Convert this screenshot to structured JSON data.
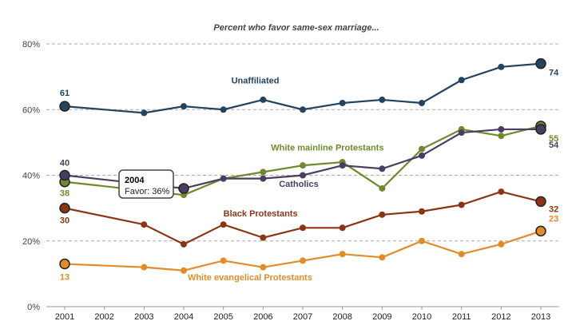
{
  "chart_data": {
    "type": "line",
    "title": "Percent who favor same-sex marriage...",
    "xlabel": "",
    "ylabel": "",
    "x": [
      "2001",
      "2002",
      "2003",
      "2004",
      "2005",
      "2006",
      "2007",
      "2008",
      "2009",
      "2010",
      "2011",
      "2012",
      "2013"
    ],
    "ylim": [
      0,
      80
    ],
    "yticks": [
      0,
      20,
      40,
      60,
      80
    ],
    "ytick_labels": [
      "0%",
      "20%",
      "40%",
      "60%",
      "80%"
    ],
    "grid": true,
    "series": [
      {
        "name": "Unaffiliated",
        "color": "#24435f",
        "values": [
          61,
          null,
          59,
          61,
          60,
          63,
          60,
          62,
          63,
          62,
          69,
          73,
          74
        ],
        "start_label": "61",
        "end_label": "74"
      },
      {
        "name": "White mainline Protestants",
        "color": "#6e8a2e",
        "values": [
          38,
          null,
          null,
          34,
          39,
          41,
          43,
          44,
          36,
          48,
          54,
          52,
          55
        ],
        "start_label": "38",
        "end_label": "55"
      },
      {
        "name": "Catholics",
        "color": "#4b3d61",
        "values": [
          40,
          null,
          null,
          36,
          39,
          39,
          40,
          43,
          42,
          46,
          53,
          54,
          54
        ],
        "start_label": "40",
        "end_label": "54"
      },
      {
        "name": "Black Protestants",
        "color": "#8a3615",
        "values": [
          30,
          null,
          25,
          19,
          25,
          21,
          24,
          24,
          28,
          29,
          31,
          35,
          32
        ],
        "start_label": "30",
        "end_label": "32"
      },
      {
        "name": "White evangelical Protestants",
        "color": "#e08c2a",
        "values": [
          13,
          null,
          12,
          11,
          14,
          12,
          14,
          16,
          15,
          20,
          16,
          19,
          23
        ],
        "start_label": "13",
        "end_label": "23"
      }
    ],
    "tooltip": {
      "year": "2004",
      "text": "Favor: 36%"
    }
  }
}
